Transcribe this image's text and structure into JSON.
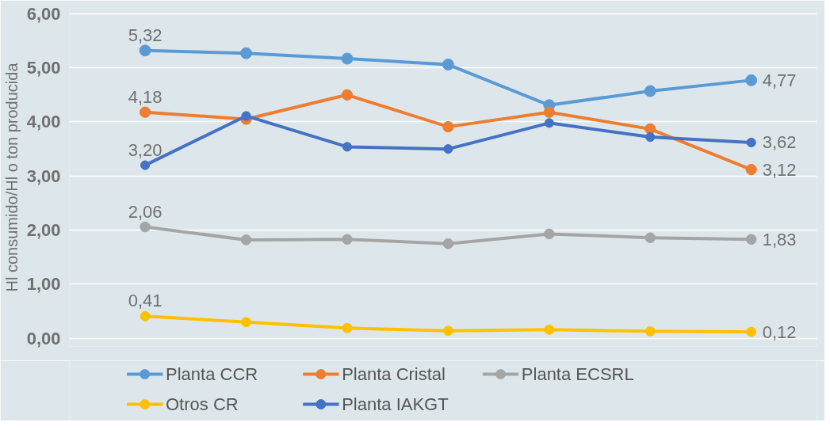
{
  "chart_data": {
    "type": "line",
    "ylabel": "Hl consumido/Hl o ton producida",
    "categories": [
      null,
      null,
      null,
      null,
      null,
      null,
      null
    ],
    "series": [
      {
        "name": "Planta CCR",
        "color": "#5b9bd5",
        "values": [
          5.32,
          5.27,
          5.17,
          5.06,
          4.31,
          4.57,
          4.77
        ],
        "value_labels": [
          "5,32",
          null,
          null,
          null,
          null,
          null,
          "4,77"
        ]
      },
      {
        "name": "Planta Cristal",
        "color": "#ed7d31",
        "values": [
          4.18,
          4.05,
          4.5,
          3.91,
          4.18,
          3.87,
          3.12
        ],
        "value_labels": [
          "4,18",
          null,
          null,
          null,
          null,
          null,
          "3,12"
        ]
      },
      {
        "name": "Planta ECSRL",
        "color": "#a5a5a5",
        "values": [
          2.06,
          1.82,
          1.83,
          1.75,
          1.93,
          1.86,
          1.83
        ],
        "value_labels": [
          "2,06",
          null,
          null,
          null,
          null,
          null,
          "1,83"
        ]
      },
      {
        "name": "Otros CR",
        "color": "#ffc000",
        "values": [
          0.41,
          0.3,
          0.19,
          0.14,
          0.16,
          0.13,
          0.12
        ],
        "value_labels": [
          "0,41",
          null,
          null,
          null,
          null,
          null,
          "0,12"
        ]
      },
      {
        "name": "Planta IAKGT",
        "color": "#4472c4",
        "values": [
          3.2,
          4.11,
          3.54,
          3.5,
          3.98,
          3.72,
          3.62
        ],
        "value_labels": [
          "3,20",
          null,
          null,
          null,
          null,
          null,
          "3,62"
        ]
      }
    ],
    "ylim": [
      -0.15,
      6.1
    ],
    "yticks": [
      {
        "value": 0,
        "label": "0,00"
      },
      {
        "value": 1,
        "label": "1,00"
      },
      {
        "value": 2,
        "label": "2,00"
      },
      {
        "value": 3,
        "label": "3,00"
      },
      {
        "value": 4,
        "label": "4,00"
      },
      {
        "value": 5,
        "label": "5,00"
      },
      {
        "value": 6,
        "label": "6,00"
      }
    ],
    "grid": "y",
    "legend": "bottom",
    "marker": "circle",
    "line_style": "solid",
    "tick_labels": "y"
  }
}
